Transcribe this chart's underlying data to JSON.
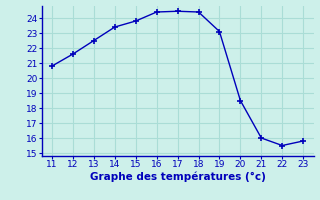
{
  "x": [
    11,
    12,
    13,
    14,
    15,
    16,
    17,
    18,
    19,
    20,
    21,
    22,
    23
  ],
  "y": [
    20.8,
    21.6,
    22.5,
    23.4,
    23.8,
    24.4,
    24.45,
    24.4,
    23.1,
    18.5,
    16.0,
    15.5,
    15.8
  ],
  "xlim": [
    10.5,
    23.5
  ],
  "ylim": [
    14.8,
    24.8
  ],
  "yticks": [
    15,
    16,
    17,
    18,
    19,
    20,
    21,
    22,
    23,
    24
  ],
  "xticks": [
    11,
    12,
    13,
    14,
    15,
    16,
    17,
    18,
    19,
    20,
    21,
    22,
    23
  ],
  "xlabel": "Graphe des températures (°c)",
  "line_color": "#0000bb",
  "marker": "+",
  "bg_color": "#cdf0ea",
  "grid_color": "#aaddd6",
  "axis_color": "#0000bb",
  "label_color": "#0000bb",
  "tick_fontsize": 6.5,
  "label_fontsize": 7.5
}
